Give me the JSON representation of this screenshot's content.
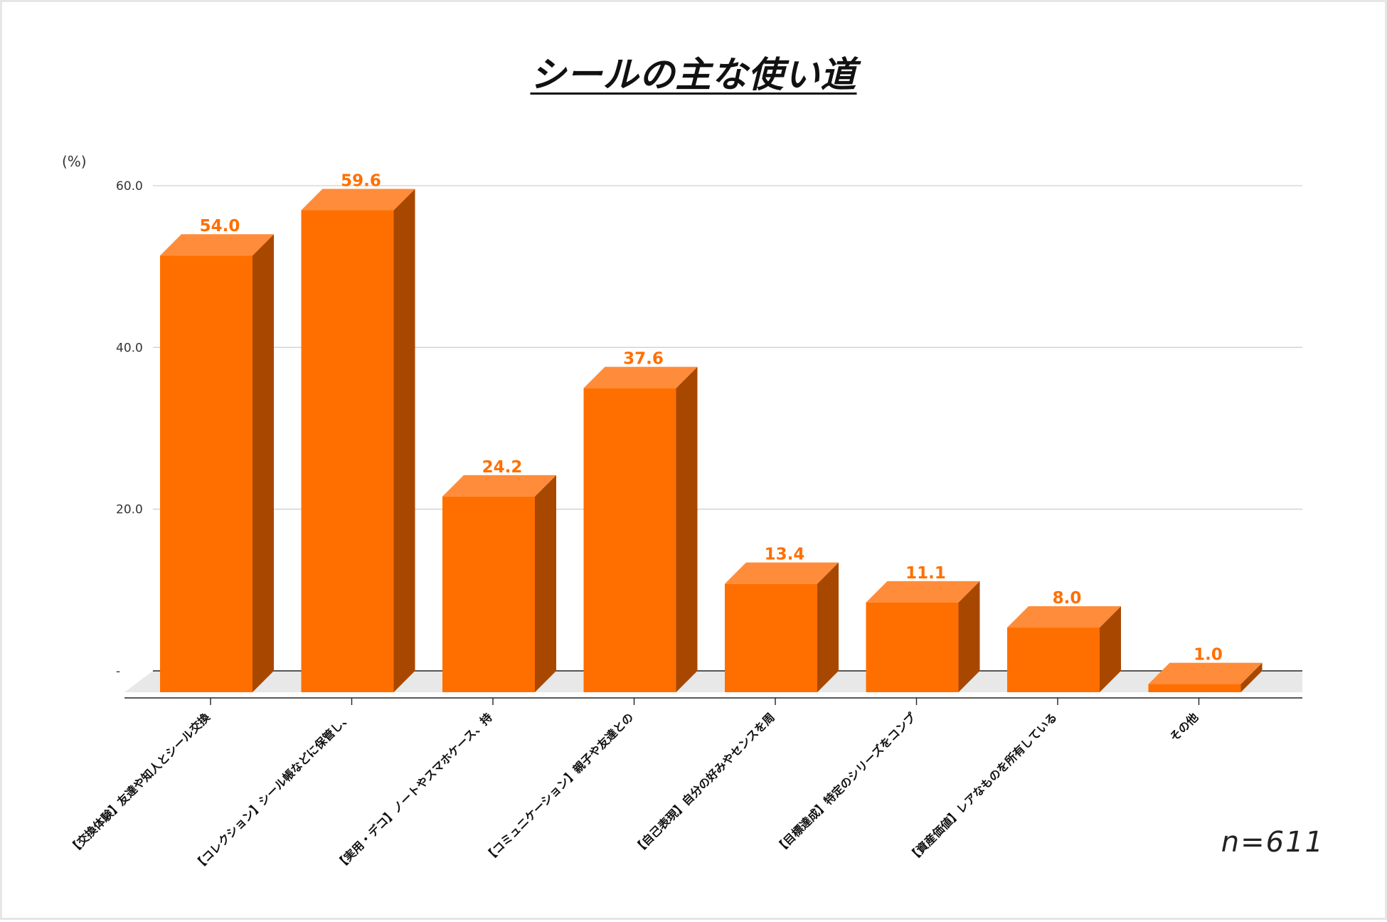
{
  "chart_data": {
    "type": "bar",
    "title": "シールの主な使い道",
    "ylabel": "(%)",
    "ylim": [
      0,
      60
    ],
    "yticks": [
      "60.0",
      "40.0",
      "20.0",
      "-"
    ],
    "categories": [
      "【交換体験】友達や知人とシール交換",
      "【コレクション】シール帳などに保管し、",
      "【実用・デコ】ノートやスマホケース、持",
      "【コミュニケーション】親子や友達との",
      "【自己表現】自分の好みやセンスを周",
      "【目標達成】特定のシリーズをコンプ",
      "【資産価値】レアなものを所有している",
      "その他"
    ],
    "values": [
      54.0,
      59.6,
      24.2,
      37.6,
      13.4,
      11.1,
      8.0,
      1.0
    ],
    "value_labels": [
      "54.0",
      "59.6",
      "24.2",
      "37.6",
      "13.4",
      "11.1",
      "8.0",
      "1.0"
    ],
    "grid": true,
    "style": "3d-bar",
    "colors": {
      "bar_front": "#ff6f00",
      "bar_top": "#ff8c3a",
      "bar_side": "#a84800",
      "value_label": "#ff6f00",
      "floor": "#e8e8e8",
      "gridline": "#d0d0d0"
    }
  },
  "annotation": {
    "sample_size": "n=611"
  }
}
